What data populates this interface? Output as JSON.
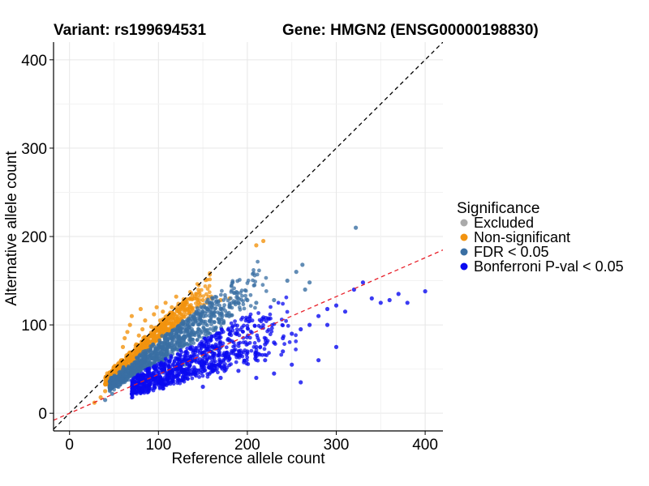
{
  "chart_data": {
    "type": "scatter",
    "title_left": "Variant: rs199694531",
    "title_right": "Gene: HMGN2 (ENSG00000198830)",
    "xlabel": "Reference allele count",
    "ylabel": "Alternative allele count",
    "xlim": [
      -18,
      420
    ],
    "ylim": [
      -20,
      420
    ],
    "x_ticks": [
      0,
      100,
      200,
      300,
      400
    ],
    "y_ticks": [
      0,
      100,
      200,
      300,
      400
    ],
    "grid": true,
    "legend": {
      "title": "Significance",
      "placement": "right",
      "entries": [
        {
          "label": "Excluded",
          "color": "#aaaaaa"
        },
        {
          "label": "Non-significant",
          "color": "#f2930f"
        },
        {
          "label": "FDR < 0.05",
          "color": "#3a6fa3"
        },
        {
          "label": "Bonferroni P-val < 0.05",
          "color": "#0a0af0"
        }
      ]
    },
    "reference_lines": [
      {
        "name": "identity",
        "style": "dashed",
        "color": "#000000",
        "slope": 1,
        "intercept": 0
      },
      {
        "name": "fit",
        "style": "dashed",
        "color": "#e8202a",
        "slope": 0.44,
        "intercept": 0
      }
    ],
    "series": [
      {
        "category": "Non-significant",
        "color": "#f2930f",
        "points": [
          [
            28,
            12
          ],
          [
            35,
            18
          ],
          [
            40,
            25
          ],
          [
            45,
            30
          ],
          [
            50,
            40
          ],
          [
            55,
            48
          ],
          [
            58,
            60
          ],
          [
            60,
            75
          ],
          [
            62,
            85
          ],
          [
            65,
            92
          ],
          [
            68,
            100
          ],
          [
            70,
            110
          ],
          [
            72,
            62
          ],
          [
            75,
            78
          ],
          [
            78,
            88
          ],
          [
            80,
            118
          ],
          [
            82,
            95
          ],
          [
            85,
            105
          ],
          [
            88,
            70
          ],
          [
            90,
            82
          ],
          [
            92,
            98
          ],
          [
            95,
            112
          ],
          [
            98,
            120
          ],
          [
            100,
            88
          ],
          [
            102,
            105
          ],
          [
            105,
            115
          ],
          [
            108,
            125
          ],
          [
            110,
            95
          ],
          [
            112,
            108
          ],
          [
            115,
            120
          ],
          [
            118,
            112
          ],
          [
            120,
            132
          ],
          [
            125,
            118
          ],
          [
            130,
            125
          ],
          [
            135,
            120
          ],
          [
            140,
            130
          ],
          [
            145,
            125
          ],
          [
            150,
            128
          ],
          [
            155,
            125
          ],
          [
            160,
            130
          ],
          [
            170,
            128
          ],
          [
            180,
            130
          ],
          [
            210,
            190
          ],
          [
            218,
            195
          ]
        ]
      },
      {
        "category": "FDR < 0.05",
        "color": "#3a6fa3",
        "points": [
          [
            40,
            15
          ],
          [
            48,
            22
          ],
          [
            55,
            30
          ],
          [
            60,
            35
          ],
          [
            70,
            42
          ],
          [
            75,
            48
          ],
          [
            80,
            52
          ],
          [
            85,
            58
          ],
          [
            90,
            62
          ],
          [
            95,
            68
          ],
          [
            100,
            70
          ],
          [
            105,
            75
          ],
          [
            110,
            80
          ],
          [
            115,
            85
          ],
          [
            120,
            90
          ],
          [
            125,
            95
          ],
          [
            130,
            100
          ],
          [
            135,
            105
          ],
          [
            140,
            108
          ],
          [
            145,
            112
          ],
          [
            150,
            115
          ],
          [
            155,
            118
          ],
          [
            160,
            120
          ],
          [
            170,
            118
          ],
          [
            180,
            122
          ],
          [
            190,
            125
          ],
          [
            200,
            128
          ],
          [
            210,
            125
          ],
          [
            230,
            128
          ],
          [
            245,
            150
          ],
          [
            255,
            160
          ],
          [
            262,
            168
          ],
          [
            265,
            140
          ],
          [
            270,
            148
          ],
          [
            322,
            210
          ],
          [
            100,
            40
          ],
          [
            110,
            45
          ],
          [
            120,
            50
          ],
          [
            130,
            55
          ],
          [
            140,
            60
          ],
          [
            150,
            65
          ],
          [
            160,
            70
          ],
          [
            170,
            75
          ],
          [
            180,
            82
          ]
        ]
      },
      {
        "category": "Bonferroni P-val < 0.05",
        "color": "#0a0af0",
        "points": [
          [
            70,
            22
          ],
          [
            80,
            28
          ],
          [
            90,
            32
          ],
          [
            100,
            35
          ],
          [
            110,
            38
          ],
          [
            120,
            42
          ],
          [
            130,
            45
          ],
          [
            140,
            48
          ],
          [
            150,
            52
          ],
          [
            160,
            55
          ],
          [
            170,
            58
          ],
          [
            180,
            62
          ],
          [
            190,
            65
          ],
          [
            200,
            70
          ],
          [
            210,
            75
          ],
          [
            220,
            78
          ],
          [
            230,
            80
          ],
          [
            240,
            85
          ],
          [
            250,
            90
          ],
          [
            260,
            95
          ],
          [
            270,
            100
          ],
          [
            280,
            110
          ],
          [
            290,
            118
          ],
          [
            300,
            122
          ],
          [
            310,
            115
          ],
          [
            320,
            140
          ],
          [
            330,
            148
          ],
          [
            340,
            130
          ],
          [
            350,
            125
          ],
          [
            360,
            128
          ],
          [
            370,
            135
          ],
          [
            380,
            125
          ],
          [
            400,
            138
          ],
          [
            210,
            40
          ],
          [
            230,
            45
          ],
          [
            250,
            55
          ],
          [
            260,
            35
          ],
          [
            280,
            60
          ],
          [
            300,
            75
          ],
          [
            290,
            100
          ],
          [
            150,
            30
          ],
          [
            170,
            40
          ],
          [
            190,
            48
          ],
          [
            220,
            60
          ],
          [
            240,
            70
          ]
        ]
      }
    ]
  }
}
